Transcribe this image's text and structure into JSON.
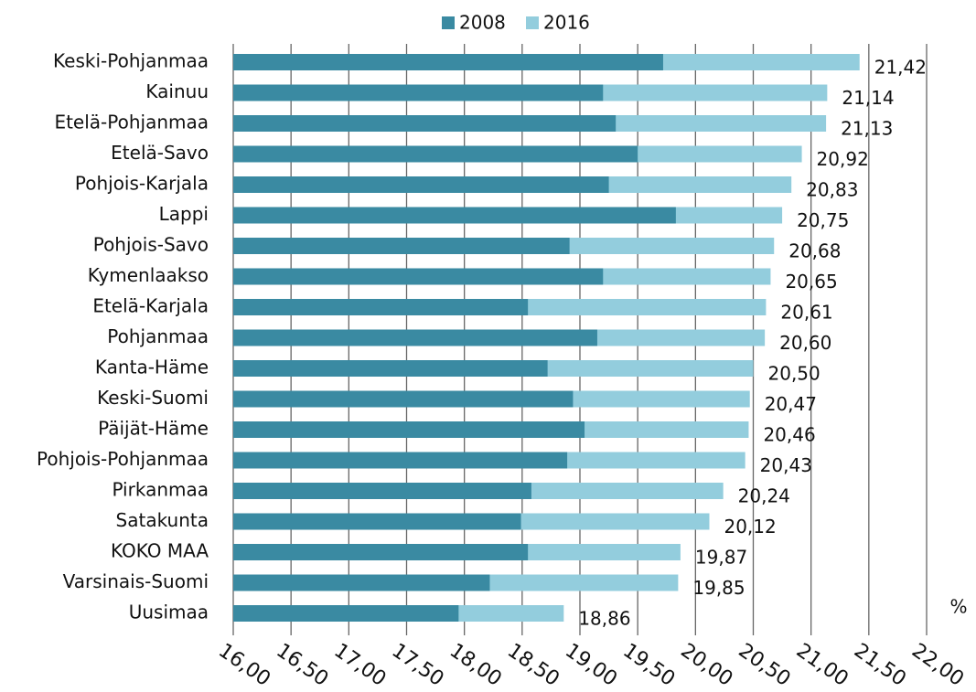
{
  "chart_data": {
    "type": "bar",
    "orientation": "horizontal",
    "overlap": true,
    "categories": [
      "Keski-Pohjanmaa",
      "Kainuu",
      "Etelä-Pohjanmaa",
      "Etelä-Savo",
      "Pohjois-Karjala",
      "Lappi",
      "Pohjois-Savo",
      "Kymenlaakso",
      "Etelä-Karjala",
      "Pohjanmaa",
      "Kanta-Häme",
      "Keski-Suomi",
      "Päijät-Häme",
      "Pohjois-Pohjanmaa",
      "Pirkanmaa",
      "Satakunta",
      "KOKO MAA",
      "Varsinais-Suomi",
      "Uusimaa"
    ],
    "series": [
      {
        "name": "2016",
        "color": "#93cddd",
        "values": [
          21.42,
          21.14,
          21.13,
          20.92,
          20.83,
          20.75,
          20.68,
          20.65,
          20.61,
          20.6,
          20.5,
          20.47,
          20.46,
          20.43,
          20.24,
          20.12,
          19.87,
          19.85,
          18.86
        ],
        "value_labels": [
          "21,42",
          "21,14",
          "21,13",
          "20,92",
          "20,83",
          "20,75",
          "20,68",
          "20,65",
          "20,61",
          "20,60",
          "20,50",
          "20,47",
          "20,46",
          "20,43",
          "20,24",
          "20,12",
          "19,87",
          "19,85",
          "18,86"
        ]
      },
      {
        "name": "2008",
        "color": "#3a8aa2",
        "values": [
          19.72,
          19.2,
          19.31,
          19.5,
          19.25,
          19.83,
          18.91,
          19.2,
          18.55,
          19.15,
          18.72,
          18.94,
          19.04,
          18.89,
          18.58,
          18.49,
          18.55,
          18.22,
          17.95
        ]
      }
    ],
    "legend_order": [
      "2008",
      "2016"
    ],
    "xlim": [
      16,
      22
    ],
    "xticks": [
      {
        "value": 16,
        "label": "16,00"
      },
      {
        "value": 16.5,
        "label": "16,50"
      },
      {
        "value": 17,
        "label": "17,00"
      },
      {
        "value": 17.5,
        "label": "17,50"
      },
      {
        "value": 18,
        "label": "18,00"
      },
      {
        "value": 18.5,
        "label": "18,50"
      },
      {
        "value": 19,
        "label": "19,00"
      },
      {
        "value": 19.5,
        "label": "19,50"
      },
      {
        "value": 20,
        "label": "20,00"
      },
      {
        "value": 20.5,
        "label": "20,50"
      },
      {
        "value": 21,
        "label": "21,00"
      },
      {
        "value": 21.5,
        "label": "21,50"
      },
      {
        "value": 22,
        "label": "22,00"
      }
    ],
    "unit_label": "%",
    "grid": true,
    "legend": "top"
  }
}
